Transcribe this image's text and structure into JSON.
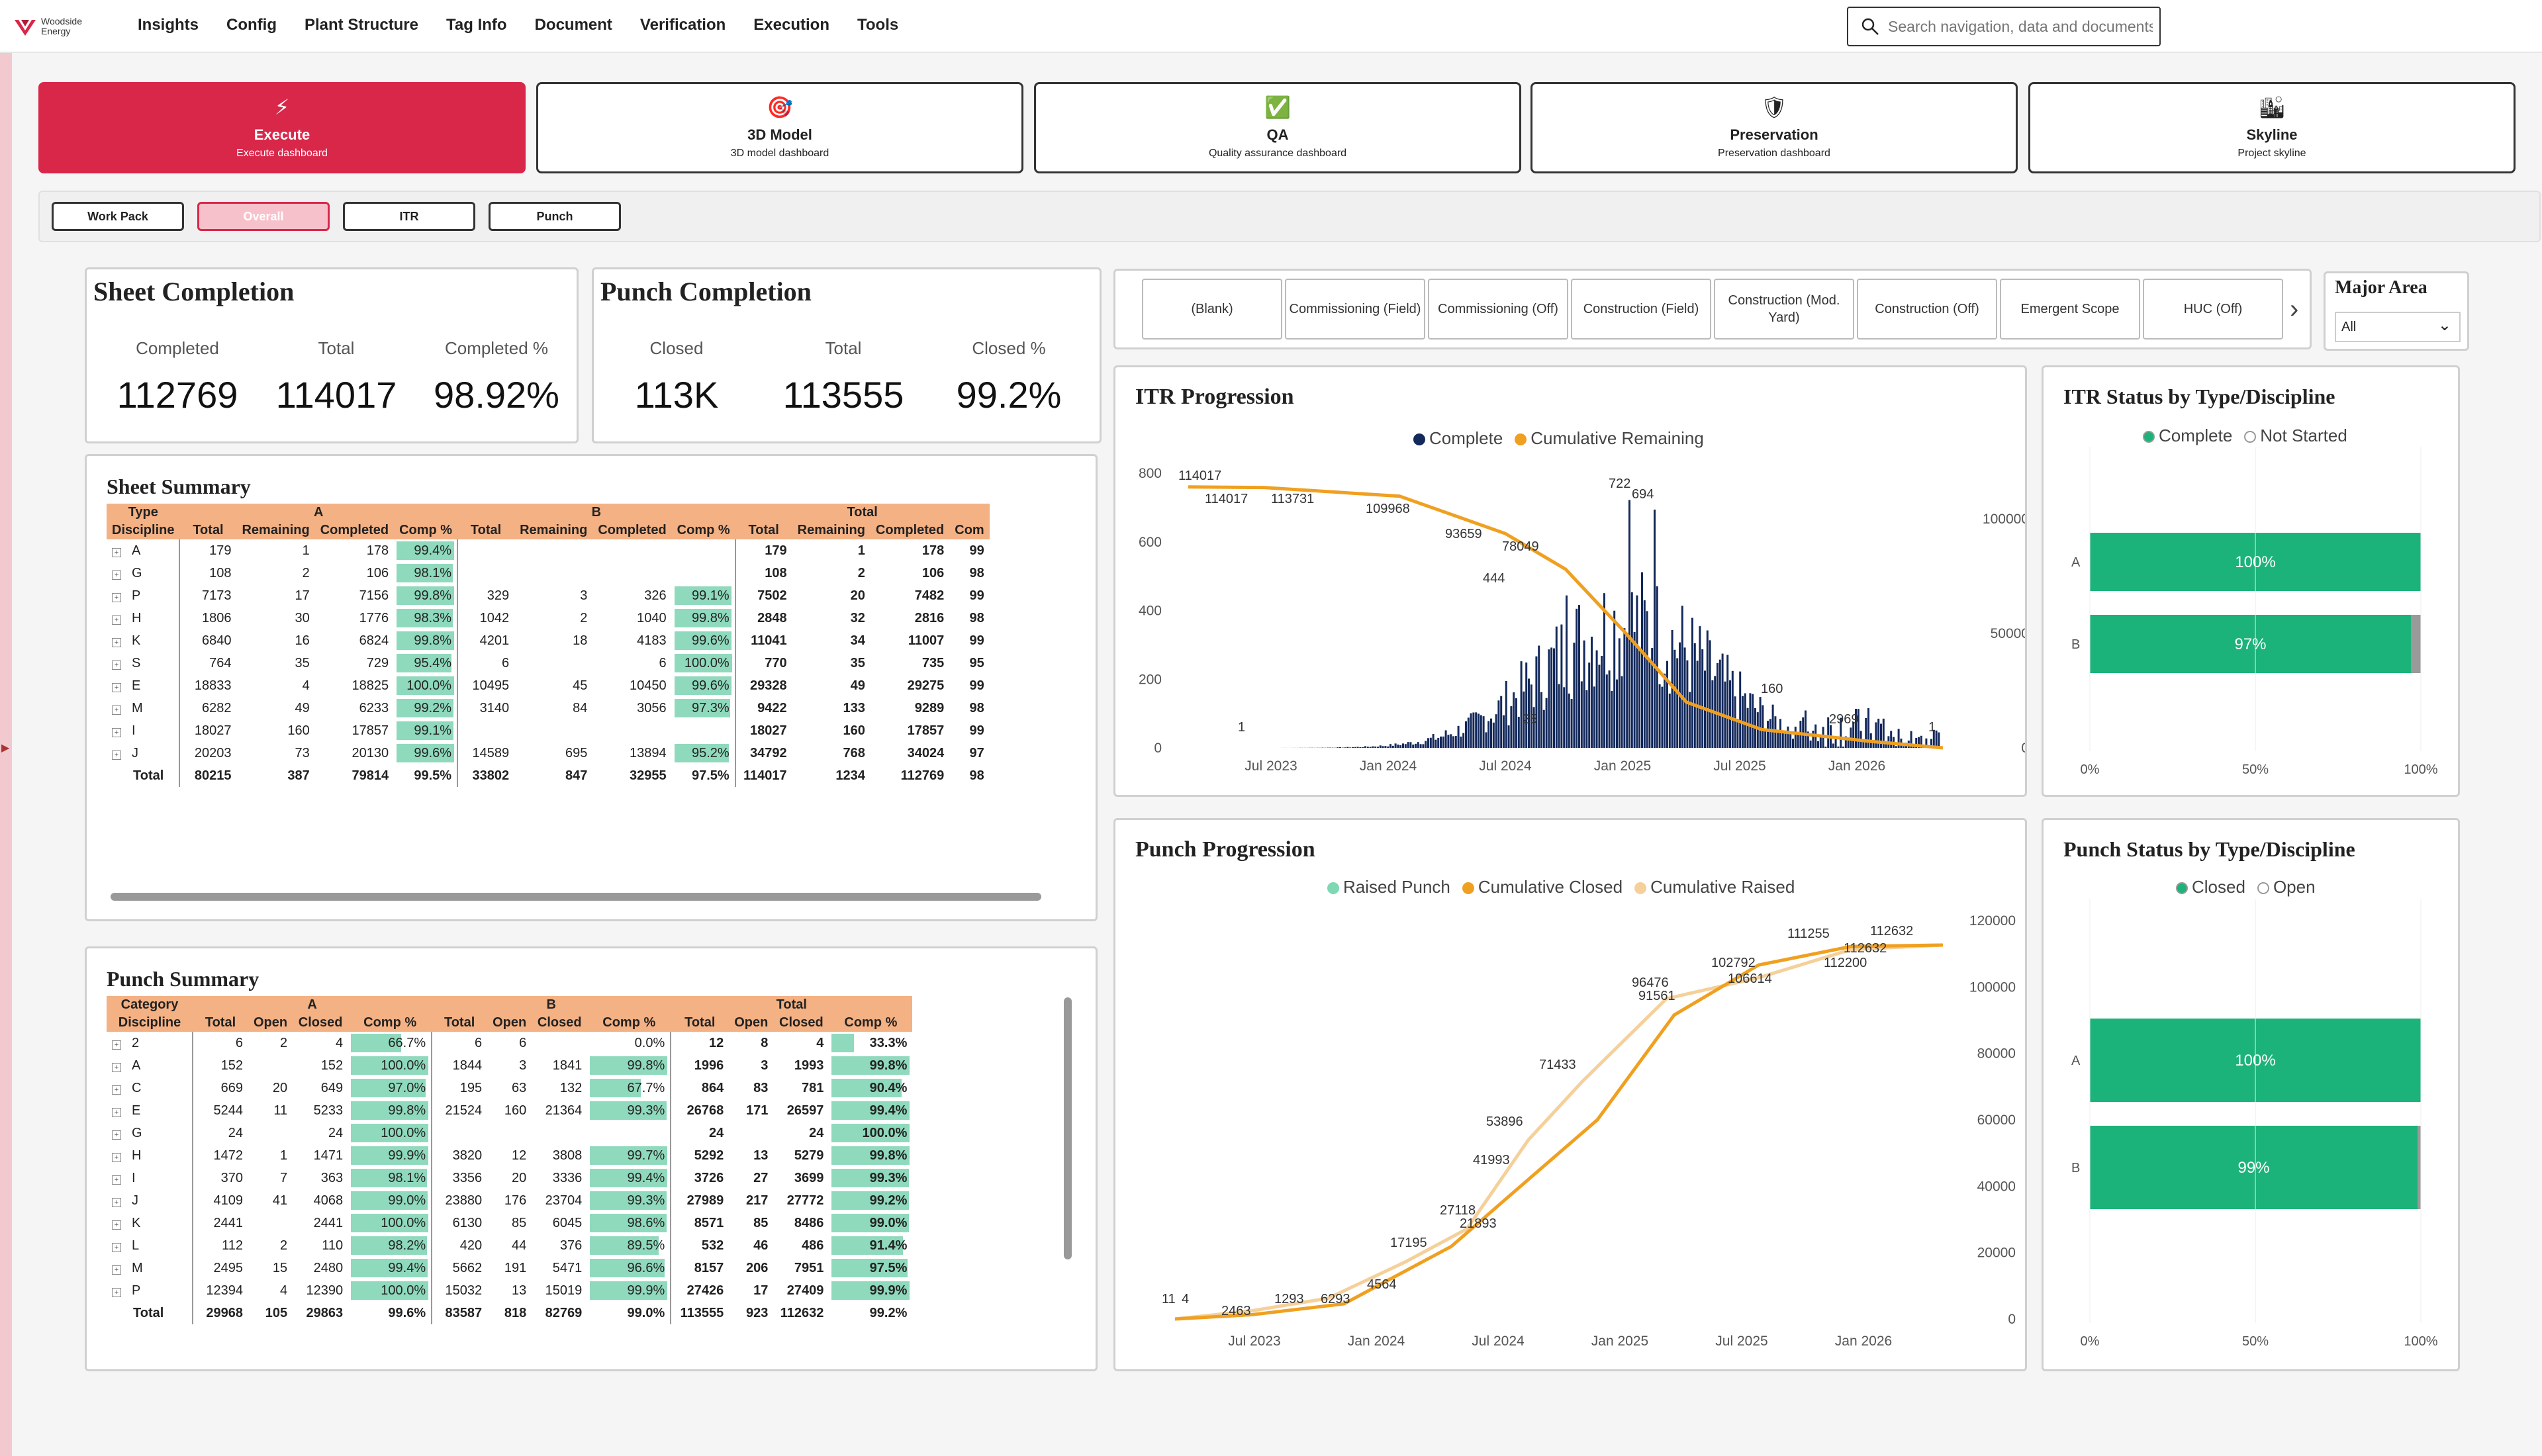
{
  "brand": {
    "line1": "Woodside",
    "line2": "Energy"
  },
  "nav": [
    "Insights",
    "Config",
    "Plant Structure",
    "Tag Info",
    "Document",
    "Verification",
    "Execution",
    "Tools"
  ],
  "search": {
    "placeholder": "Search navigation, data and documents"
  },
  "dash_cards": [
    {
      "title": "Execute",
      "sub": "Execute dashboard",
      "icon": "⚡"
    },
    {
      "title": "3D Model",
      "sub": "3D model dashboard",
      "icon": "🎯"
    },
    {
      "title": "QA",
      "sub": "Quality assurance dashboard",
      "icon": "✅"
    },
    {
      "title": "Preservation",
      "sub": "Preservation dashboard",
      "icon": "🛡"
    },
    {
      "title": "Skyline",
      "sub": "Project skyline",
      "icon": "🏙"
    }
  ],
  "subtabs": [
    "Work Pack",
    "Overall",
    "ITR",
    "Punch"
  ],
  "sheet_completion": {
    "title": "Sheet Completion",
    "labels": [
      "Completed",
      "Total",
      "Completed %"
    ],
    "values": [
      "112769",
      "114017",
      "98.92%"
    ]
  },
  "punch_completion": {
    "title": "Punch Completion",
    "labels": [
      "Closed",
      "Total",
      "Closed %"
    ],
    "values": [
      "113K",
      "113555",
      "99.2%"
    ]
  },
  "filter_buttons": [
    "(Blank)",
    "Commissioning (Field)",
    "Commissioning (Off)",
    "Construction (Field)",
    "Construction (Mod. Yard)",
    "Construction (Off)",
    "Emergent Scope",
    "HUC (Off)"
  ],
  "major_area": {
    "title": "Major Area",
    "value": "All"
  },
  "sheet_summary": {
    "title": "Sheet Summary",
    "group_row": [
      "Type",
      "A",
      "B",
      "Total"
    ],
    "headers": [
      "Discipline",
      "Total",
      "Remaining",
      "Completed",
      "Comp %",
      "Total",
      "Remaining",
      "Completed",
      "Comp %",
      "Total",
      "Remaining",
      "Completed",
      "Com"
    ],
    "rows": [
      [
        "A",
        "179",
        "1",
        "178",
        "99.4%",
        "",
        "",
        "",
        "",
        "179",
        "1",
        "178",
        "99"
      ],
      [
        "G",
        "108",
        "2",
        "106",
        "98.1%",
        "",
        "",
        "",
        "",
        "108",
        "2",
        "106",
        "98"
      ],
      [
        "P",
        "7173",
        "17",
        "7156",
        "99.8%",
        "329",
        "3",
        "326",
        "99.1%",
        "7502",
        "20",
        "7482",
        "99"
      ],
      [
        "H",
        "1806",
        "30",
        "1776",
        "98.3%",
        "1042",
        "2",
        "1040",
        "99.8%",
        "2848",
        "32",
        "2816",
        "98"
      ],
      [
        "K",
        "6840",
        "16",
        "6824",
        "99.8%",
        "4201",
        "18",
        "4183",
        "99.6%",
        "11041",
        "34",
        "11007",
        "99"
      ],
      [
        "S",
        "764",
        "35",
        "729",
        "95.4%",
        "6",
        "",
        "6",
        "100.0%",
        "770",
        "35",
        "735",
        "95"
      ],
      [
        "E",
        "18833",
        "4",
        "18825",
        "100.0%",
        "10495",
        "45",
        "10450",
        "99.6%",
        "29328",
        "49",
        "29275",
        "99"
      ],
      [
        "M",
        "6282",
        "49",
        "6233",
        "99.2%",
        "3140",
        "84",
        "3056",
        "97.3%",
        "9422",
        "133",
        "9289",
        "98"
      ],
      [
        "I",
        "18027",
        "160",
        "17857",
        "99.1%",
        "",
        "",
        "",
        "",
        "18027",
        "160",
        "17857",
        "99"
      ],
      [
        "J",
        "20203",
        "73",
        "20130",
        "99.6%",
        "14589",
        "695",
        "13894",
        "95.2%",
        "34792",
        "768",
        "34024",
        "97"
      ]
    ],
    "total": [
      "Total",
      "80215",
      "387",
      "79814",
      "99.5%",
      "33802",
      "847",
      "32955",
      "97.5%",
      "114017",
      "1234",
      "112769",
      "98"
    ]
  },
  "punch_summary": {
    "title": "Punch Summary",
    "group_row": [
      "Category",
      "A",
      "B",
      "Total"
    ],
    "headers": [
      "Discipline",
      "Total",
      "Open",
      "Closed",
      "Comp %",
      "Total",
      "Open",
      "Closed",
      "Comp %",
      "Total",
      "Open",
      "Closed",
      "Comp %"
    ],
    "rows": [
      [
        "2",
        "6",
        "2",
        "4",
        "66.7%",
        "6",
        "6",
        "",
        "0.0%",
        "12",
        "8",
        "4",
        "33.3%"
      ],
      [
        "A",
        "152",
        "",
        "152",
        "100.0%",
        "1844",
        "3",
        "1841",
        "99.8%",
        "1996",
        "3",
        "1993",
        "99.8%"
      ],
      [
        "C",
        "669",
        "20",
        "649",
        "97.0%",
        "195",
        "63",
        "132",
        "67.7%",
        "864",
        "83",
        "781",
        "90.4%"
      ],
      [
        "E",
        "5244",
        "11",
        "5233",
        "99.8%",
        "21524",
        "160",
        "21364",
        "99.3%",
        "26768",
        "171",
        "26597",
        "99.4%"
      ],
      [
        "G",
        "24",
        "",
        "24",
        "100.0%",
        "",
        "",
        "",
        "",
        "24",
        "",
        "24",
        "100.0%"
      ],
      [
        "H",
        "1472",
        "1",
        "1471",
        "99.9%",
        "3820",
        "12",
        "3808",
        "99.7%",
        "5292",
        "13",
        "5279",
        "99.8%"
      ],
      [
        "I",
        "370",
        "7",
        "363",
        "98.1%",
        "3356",
        "20",
        "3336",
        "99.4%",
        "3726",
        "27",
        "3699",
        "99.3%"
      ],
      [
        "J",
        "4109",
        "41",
        "4068",
        "99.0%",
        "23880",
        "176",
        "23704",
        "99.3%",
        "27989",
        "217",
        "27772",
        "99.2%"
      ],
      [
        "K",
        "2441",
        "",
        "2441",
        "100.0%",
        "6130",
        "85",
        "6045",
        "98.6%",
        "8571",
        "85",
        "8486",
        "99.0%"
      ],
      [
        "L",
        "112",
        "2",
        "110",
        "98.2%",
        "420",
        "44",
        "376",
        "89.5%",
        "532",
        "46",
        "486",
        "91.4%"
      ],
      [
        "M",
        "2495",
        "15",
        "2480",
        "99.4%",
        "5662",
        "191",
        "5471",
        "96.6%",
        "8157",
        "206",
        "7951",
        "97.5%"
      ],
      [
        "P",
        "12394",
        "4",
        "12390",
        "100.0%",
        "15032",
        "13",
        "15019",
        "99.9%",
        "27426",
        "17",
        "27409",
        "99.9%"
      ]
    ],
    "total": [
      "Total",
      "29968",
      "105",
      "29863",
      "99.6%",
      "83587",
      "818",
      "82769",
      "99.0%",
      "113555",
      "923",
      "112632",
      "99.2%"
    ]
  },
  "itr_progression": {
    "title": "ITR Progression",
    "legend": [
      "Complete",
      "Cumulative Remaining"
    ],
    "x_ticks": [
      "Jul 2023",
      "Jan 2024",
      "Jul 2024",
      "Jan 2025",
      "Jul 2025",
      "Jan 2026"
    ],
    "y_left_ticks": [
      "800",
      "600",
      "400",
      "200",
      "0"
    ],
    "y_right_ticks": [
      "100000",
      "50000",
      "0"
    ],
    "annotations": [
      "114017",
      "114017",
      "113731",
      "109968",
      "93659",
      "78049",
      "444",
      "722",
      "694",
      "2969",
      "1",
      "1",
      "25",
      "160"
    ]
  },
  "punch_progression": {
    "title": "Punch Progression",
    "legend": [
      "Raised Punch",
      "Cumulative Closed",
      "Cumulative Raised"
    ],
    "x_ticks": [
      "Jul 2023",
      "Jan 2024",
      "Jul 2024",
      "Jan 2025",
      "Jul 2025",
      "Jan 2026"
    ],
    "y_right_ticks": [
      "120000",
      "100000",
      "80000",
      "60000",
      "40000",
      "20000",
      "0"
    ],
    "annotations": [
      "11",
      "4",
      "2463",
      "1293",
      "6293",
      "4564",
      "17195",
      "27118",
      "21893",
      "41993",
      "53896",
      "71433",
      "96476",
      "91561",
      "102792",
      "106614",
      "111255",
      "112200",
      "112632",
      "112632"
    ]
  },
  "itr_status": {
    "title": "ITR Status by Type/Discipline",
    "legend": [
      "Complete",
      "Not Started"
    ],
    "categories": [
      "A",
      "B"
    ],
    "values": [
      100,
      97
    ],
    "labels": [
      "100%",
      "97%"
    ],
    "x_ticks": [
      "0%",
      "50%",
      "100%"
    ]
  },
  "punch_status": {
    "title": "Punch Status by Type/Discipline",
    "legend": [
      "Closed",
      "Open"
    ],
    "categories": [
      "A",
      "B"
    ],
    "values": [
      100,
      99
    ],
    "labels": [
      "100%",
      "99%"
    ],
    "x_ticks": [
      "0%",
      "50%",
      "100%"
    ]
  },
  "colors": {
    "accent": "#d9274a",
    "table_header": "#f4b183",
    "databar": "#8fd9bd",
    "complete": "#13295b",
    "remaining": "#f0a020",
    "raised_punch": "#7fd8b4",
    "cum_raised": "#f5d09a",
    "status_green": "#1cb37a"
  }
}
